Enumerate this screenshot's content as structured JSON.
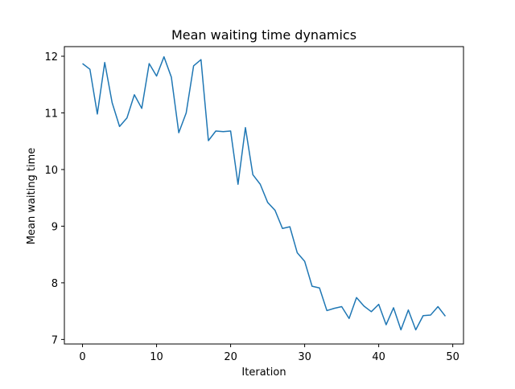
{
  "chart_data": {
    "type": "line",
    "title": "Mean waiting time dynamics",
    "xlabel": "Iteration",
    "ylabel": "Mean waiting time",
    "xlim": [
      -2.45,
      51.45
    ],
    "ylim": [
      6.92,
      12.17
    ],
    "xticks": [
      0,
      10,
      20,
      30,
      40,
      50
    ],
    "yticks": [
      7,
      8,
      9,
      10,
      11,
      12
    ],
    "grid": false,
    "legend": "none",
    "series": [
      {
        "color": "#1f77b4",
        "x": [
          0,
          1,
          2,
          3,
          4,
          5,
          6,
          7,
          8,
          9,
          10,
          11,
          12,
          13,
          14,
          15,
          16,
          17,
          18,
          19,
          20,
          21,
          22,
          23,
          24,
          25,
          26,
          27,
          28,
          29,
          30,
          31,
          32,
          33,
          34,
          35,
          36,
          37,
          38,
          39,
          40,
          41,
          42,
          43,
          44,
          45,
          46,
          47,
          48,
          49
        ],
        "values": [
          11.87,
          11.77,
          10.98,
          11.89,
          11.18,
          10.76,
          10.91,
          11.32,
          11.08,
          11.87,
          11.65,
          11.99,
          11.63,
          10.65,
          11.0,
          11.83,
          11.94,
          10.51,
          10.68,
          10.67,
          10.68,
          9.74,
          10.74,
          9.91,
          9.74,
          9.42,
          9.28,
          8.96,
          8.99,
          8.53,
          8.38,
          7.94,
          7.91,
          7.51,
          7.55,
          7.58,
          7.37,
          7.74,
          7.59,
          7.49,
          7.62,
          7.26,
          7.56,
          7.17,
          7.52,
          7.17,
          7.42,
          7.43,
          7.58,
          7.41
        ]
      }
    ]
  }
}
